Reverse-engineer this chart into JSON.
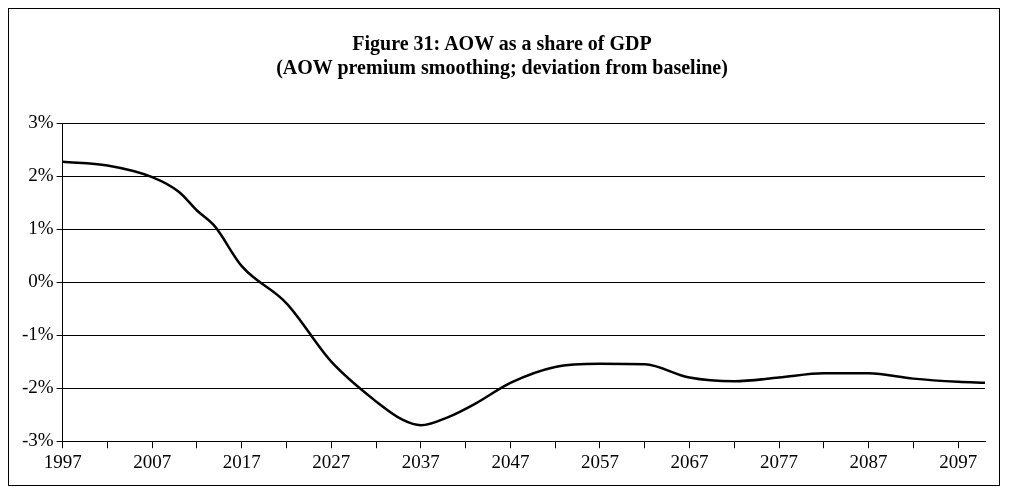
{
  "chart_data": {
    "type": "line",
    "title": "Figure 31: AOW as a share of GDP\n(AOW premium smoothing; deviation from baseline)",
    "x": [
      1997,
      2002,
      2007,
      2010,
      2012,
      2014,
      2017,
      2022,
      2027,
      2032,
      2035,
      2037,
      2040,
      2043,
      2047,
      2052,
      2057,
      2062,
      2067,
      2072,
      2077,
      2082,
      2087,
      2092,
      2097,
      2100
    ],
    "series": [
      {
        "color": "#000000",
        "values": [
          2.27,
          2.2,
          1.98,
          1.7,
          1.35,
          1.05,
          0.3,
          -0.4,
          -1.5,
          -2.25,
          -2.6,
          -2.7,
          -2.55,
          -2.3,
          -1.9,
          -1.6,
          -1.54,
          -1.55,
          -1.8,
          -1.87,
          -1.8,
          -1.72,
          -1.72,
          -1.82,
          -1.88,
          -1.9
        ]
      }
    ],
    "xlim": [
      1997,
      2100
    ],
    "xticks": [
      1997,
      {
        "value": 2002,
        "label": null
      },
      2007,
      {
        "value": 2012,
        "label": null
      },
      2017,
      {
        "value": 2022,
        "label": null
      },
      2027,
      {
        "value": 2032,
        "label": null
      },
      2037,
      {
        "value": 2042,
        "label": null
      },
      2047,
      {
        "value": 2052,
        "label": null
      },
      2057,
      {
        "value": 2062,
        "label": null
      },
      2067,
      {
        "value": 2072,
        "label": null
      },
      2077,
      {
        "value": 2082,
        "label": null
      },
      2087,
      {
        "value": 2092,
        "label": null
      },
      2097
    ],
    "ylim": [
      -3,
      3
    ],
    "yticks": [
      {
        "value": -3,
        "label": "-3%"
      },
      {
        "value": -2,
        "label": "-2%"
      },
      {
        "value": -1,
        "label": "-1%"
      },
      {
        "value": 0,
        "label": "0%"
      },
      {
        "value": 1,
        "label": "1%"
      },
      {
        "value": 2,
        "label": "2%"
      },
      {
        "value": 3,
        "label": "3%"
      }
    ],
    "grid": "y",
    "legend": false,
    "marker": "none",
    "line_style": "solid"
  }
}
